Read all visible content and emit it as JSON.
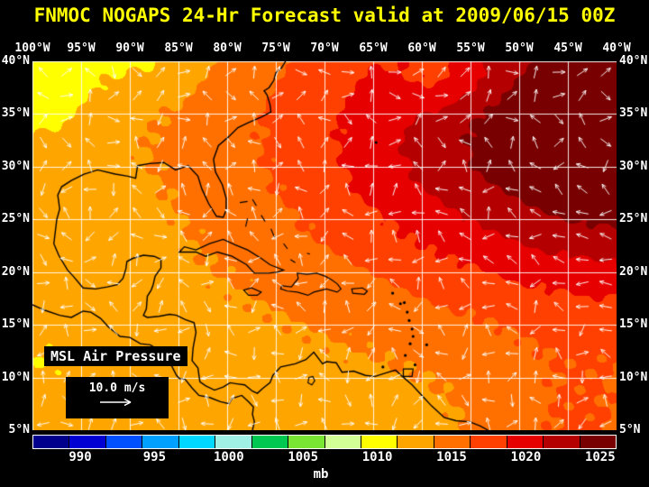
{
  "title": "FNMOC NOGAPS 24-Hr Forecast valid at 2009/06/15 00Z",
  "map": {
    "field_label": "MSL Air Pressure",
    "wind_scale_label": "10.0 m/s",
    "lon_labels": [
      "100°W",
      "95°W",
      "90°W",
      "85°W",
      "80°W",
      "75°W",
      "70°W",
      "65°W",
      "60°W",
      "55°W",
      "50°W",
      "45°W",
      "40°W"
    ],
    "lat_labels": [
      "40°N",
      "35°N",
      "30°N",
      "25°N",
      "20°N",
      "15°N",
      "10°N",
      "5°N"
    ]
  },
  "colorbar": {
    "tick_labels": [
      "990",
      "995",
      "1000",
      "1005",
      "1010",
      "1015",
      "1020",
      "1025"
    ],
    "unit": "mb",
    "colors": [
      "#00008c",
      "#0000d2",
      "#0050ff",
      "#00a0ff",
      "#00d8ff",
      "#a0f0e6",
      "#00c850",
      "#78e632",
      "#d2ff96",
      "#ffff00",
      "#ffa500",
      "#ff7000",
      "#ff4000",
      "#e60000",
      "#b40000",
      "#780000"
    ]
  }
}
